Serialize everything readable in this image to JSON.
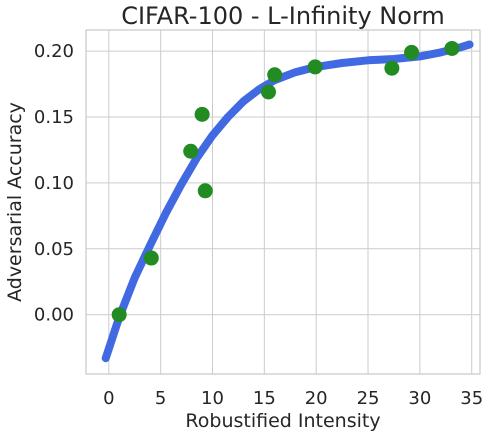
{
  "chart_data": {
    "type": "scatter",
    "title": "CIFAR-100 - L-Infinity Norm",
    "xlabel": "Robustified Intensity",
    "ylabel": "Adversarial Accuracy",
    "xlim": [
      -2.2,
      35.8
    ],
    "ylim": [
      -0.045,
      0.216
    ],
    "xticks": [
      0,
      5,
      10,
      15,
      20,
      25,
      30,
      35
    ],
    "yticks": [
      0.0,
      0.05,
      0.1,
      0.15,
      0.2
    ],
    "xtick_labels": [
      "0",
      "5",
      "10",
      "15",
      "20",
      "25",
      "30",
      "35"
    ],
    "ytick_labels": [
      "0.00",
      "0.05",
      "0.10",
      "0.15",
      "0.20"
    ],
    "grid": true,
    "colors": {
      "points": "#228b22",
      "curve": "#4169e1"
    },
    "points": [
      {
        "x": 1.0,
        "y": 0.0
      },
      {
        "x": 4.1,
        "y": 0.043
      },
      {
        "x": 7.9,
        "y": 0.124
      },
      {
        "x": 9.0,
        "y": 0.152
      },
      {
        "x": 9.3,
        "y": 0.094
      },
      {
        "x": 15.4,
        "y": 0.169
      },
      {
        "x": 16.0,
        "y": 0.182
      },
      {
        "x": 19.9,
        "y": 0.188
      },
      {
        "x": 27.3,
        "y": 0.187
      },
      {
        "x": 29.2,
        "y": 0.199
      },
      {
        "x": 33.1,
        "y": 0.202
      }
    ],
    "fit_curve": [
      {
        "x": -0.3,
        "y": -0.033
      },
      {
        "x": 1.0,
        "y": -0.002
      },
      {
        "x": 2.5,
        "y": 0.028
      },
      {
        "x": 4.0,
        "y": 0.053
      },
      {
        "x": 5.5,
        "y": 0.077
      },
      {
        "x": 7.0,
        "y": 0.099
      },
      {
        "x": 8.5,
        "y": 0.119
      },
      {
        "x": 10.0,
        "y": 0.136
      },
      {
        "x": 11.5,
        "y": 0.15
      },
      {
        "x": 13.0,
        "y": 0.162
      },
      {
        "x": 14.5,
        "y": 0.171
      },
      {
        "x": 16.0,
        "y": 0.178
      },
      {
        "x": 18.0,
        "y": 0.184
      },
      {
        "x": 20.0,
        "y": 0.188
      },
      {
        "x": 22.5,
        "y": 0.191
      },
      {
        "x": 25.0,
        "y": 0.193
      },
      {
        "x": 27.5,
        "y": 0.194
      },
      {
        "x": 30.0,
        "y": 0.196
      },
      {
        "x": 32.0,
        "y": 0.199
      },
      {
        "x": 34.0,
        "y": 0.203
      },
      {
        "x": 34.8,
        "y": 0.205
      }
    ]
  }
}
